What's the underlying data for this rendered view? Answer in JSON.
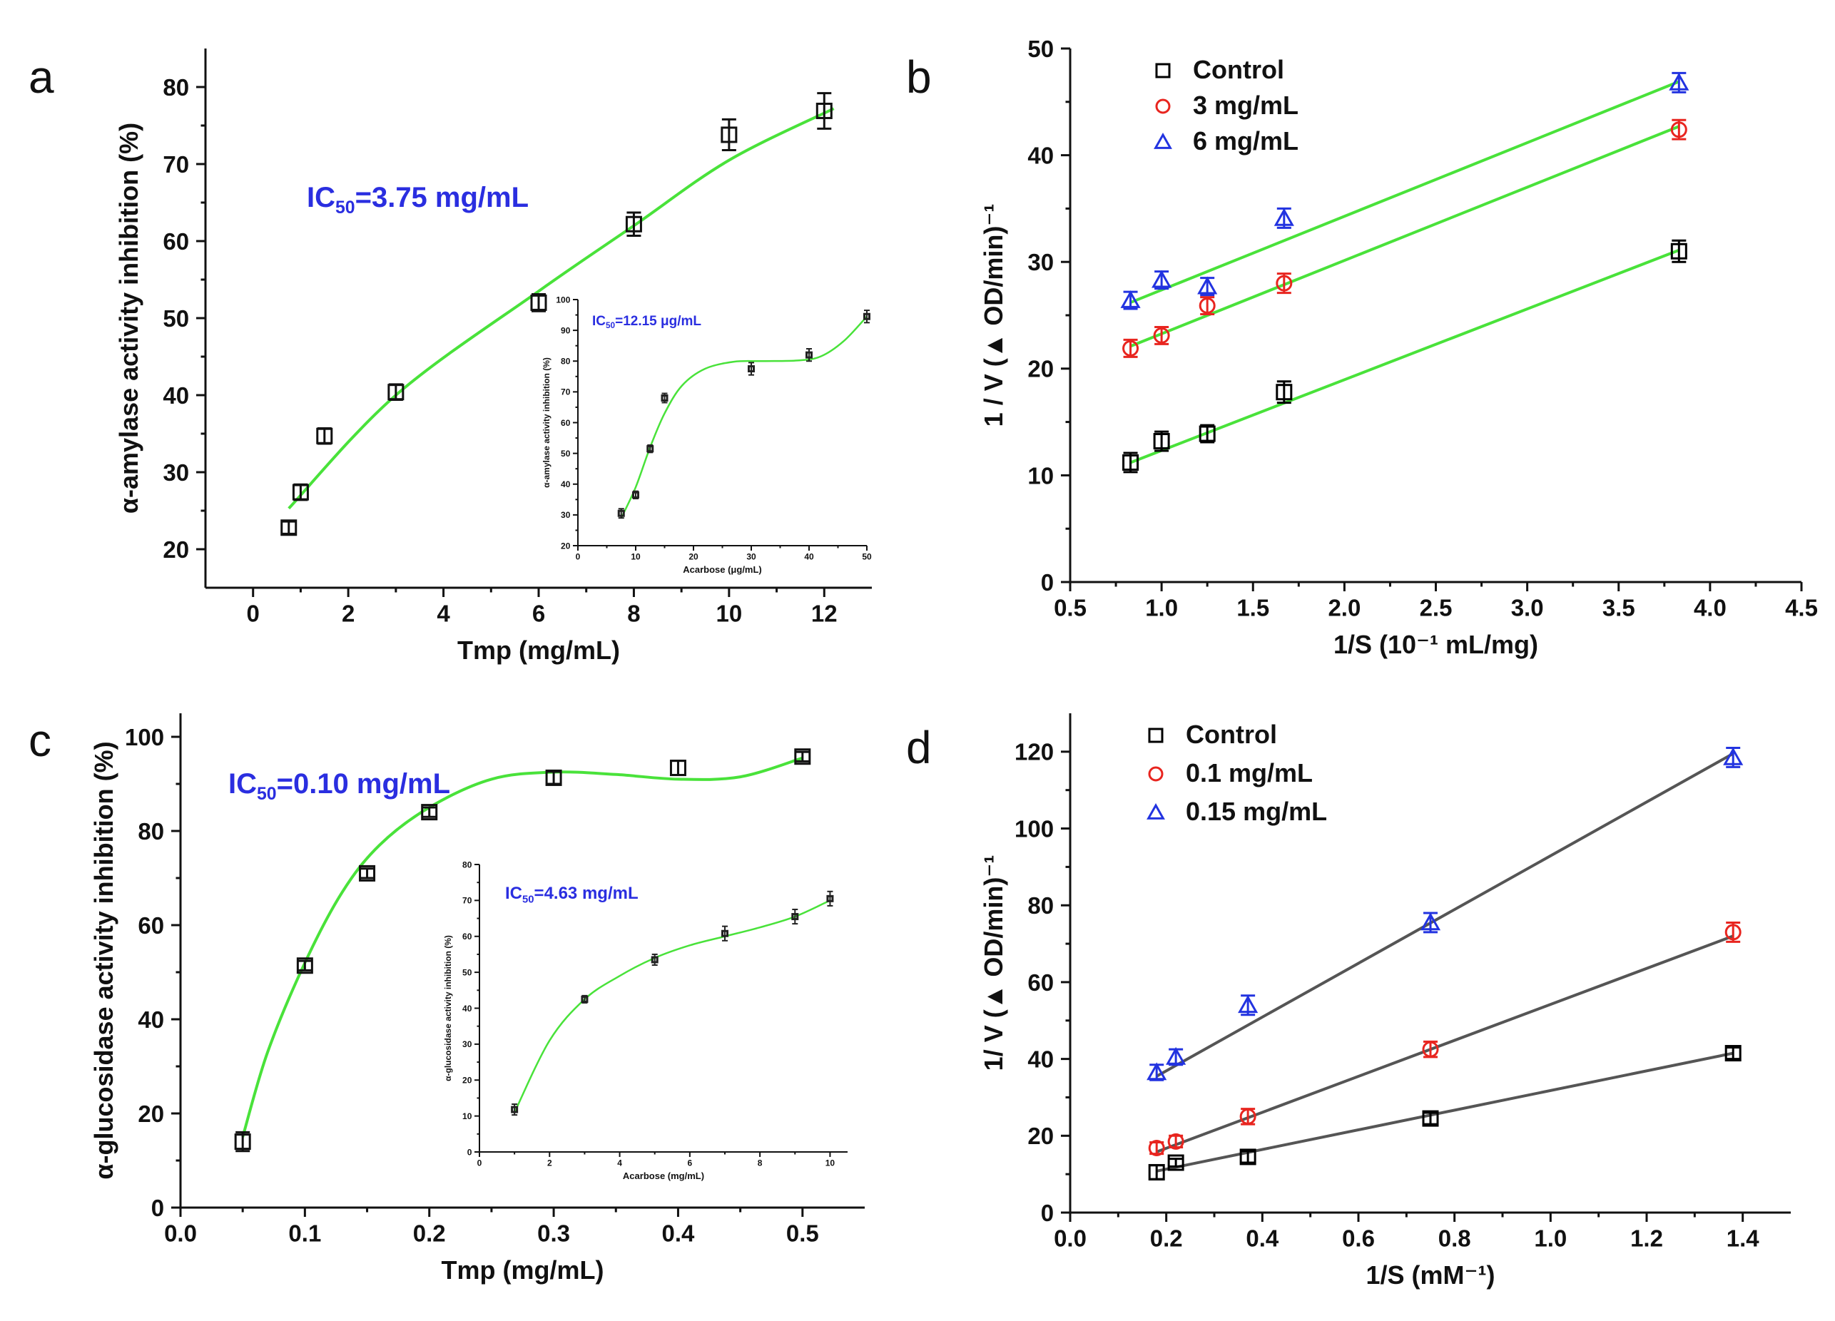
{
  "chart_data": [
    {
      "panel": "a",
      "type": "scatter",
      "xlabel": "Tmp (mg/mL)",
      "ylabel": "α-amylase activity inhibition (%)",
      "xlim": [
        -1,
        13
      ],
      "ylim": [
        15,
        85
      ],
      "xticks": [
        0,
        2,
        4,
        6,
        8,
        10,
        12
      ],
      "yticks": [
        20,
        30,
        40,
        50,
        60,
        70,
        80
      ],
      "grid": false,
      "annotation": {
        "prefix": "IC",
        "sub": "50",
        "suffix": "=3.75 mg/mL"
      },
      "series": [
        {
          "x": [
            0.75,
            1.0,
            1.5,
            3.0,
            6.0,
            8.0,
            10.0,
            12.0
          ],
          "y": [
            22.8,
            27.4,
            34.7,
            40.4,
            52.0,
            62.2,
            73.8,
            76.9
          ],
          "err": [
            0.8,
            1.0,
            1.0,
            1.0,
            1.1,
            1.5,
            2.0,
            2.3
          ],
          "fit": [
            [
              0.75,
              25.3
            ],
            [
              3,
              40.0
            ],
            [
              6,
              53.5
            ],
            [
              8,
              62.0
            ],
            [
              10,
              70.5
            ],
            [
              12.2,
              77.2
            ]
          ]
        }
      ],
      "inset": {
        "xlabel": "Acarbose (μg/mL)",
        "ylabel": "α-amylase activity inhibition (%)",
        "xlim": [
          0,
          50
        ],
        "ylim": [
          20,
          100
        ],
        "xticks": [
          0,
          10,
          20,
          30,
          40,
          50
        ],
        "yticks": [
          20,
          30,
          40,
          50,
          60,
          70,
          80,
          90,
          100
        ],
        "annotation": {
          "prefix": "IC",
          "sub": "50",
          "suffix": "=12.15 μg/mL"
        },
        "x": [
          7.5,
          10,
          12.5,
          15,
          30,
          40,
          50
        ],
        "y": [
          30.5,
          36.5,
          51.5,
          68.0,
          77.5,
          82.0,
          94.5
        ],
        "err": [
          1.5,
          1.2,
          1.2,
          1.5,
          2.0,
          2.0,
          2.0
        ],
        "fit": [
          [
            7.5,
            29
          ],
          [
            10,
            39
          ],
          [
            12.5,
            52
          ],
          [
            15,
            63
          ],
          [
            18,
            72
          ],
          [
            22,
            77.5
          ],
          [
            27,
            79.8
          ],
          [
            32,
            80
          ],
          [
            38,
            80.2
          ],
          [
            42,
            81.5
          ],
          [
            46,
            86.5
          ],
          [
            50,
            94.5
          ]
        ]
      }
    },
    {
      "panel": "b",
      "type": "scatter",
      "xlabel": "1/S (10⁻¹ mL/mg)",
      "ylabel": "1 / V (▲ OD/min)⁻¹",
      "xlim": [
        0.5,
        4.5
      ],
      "ylim": [
        0,
        50
      ],
      "xticks": [
        0.5,
        1.0,
        1.5,
        2.0,
        2.5,
        3.0,
        3.5,
        4.0,
        4.5
      ],
      "yticks": [
        0,
        10,
        20,
        30,
        40,
        50
      ],
      "grid": false,
      "legend_position": "top-left",
      "series": [
        {
          "name": "Control",
          "color": "#000000",
          "marker": "square",
          "x": [
            0.83,
            1.0,
            1.25,
            1.67,
            3.83
          ],
          "y": [
            11.2,
            13.2,
            13.9,
            17.8,
            31.0
          ],
          "err": [
            0.9,
            0.9,
            0.8,
            1.0,
            1.0
          ],
          "fit": [
            [
              0.83,
              11.2
            ],
            [
              3.83,
              31.1
            ]
          ]
        },
        {
          "name": "3 mg/mL",
          "color": "#e8251f",
          "marker": "circle",
          "x": [
            0.83,
            1.0,
            1.25,
            1.67,
            3.83
          ],
          "y": [
            21.9,
            23.1,
            25.9,
            28.0,
            42.4
          ],
          "err": [
            0.8,
            0.8,
            0.8,
            0.9,
            0.9
          ],
          "fit": [
            [
              0.83,
              22.1
            ],
            [
              3.83,
              42.7
            ]
          ]
        },
        {
          "name": "6 mg/mL",
          "color": "#2233e0",
          "marker": "triangle",
          "x": [
            0.83,
            1.0,
            1.25,
            1.67,
            3.83
          ],
          "y": [
            26.4,
            28.3,
            27.7,
            34.1,
            46.8
          ],
          "err": [
            0.8,
            0.8,
            0.8,
            0.9,
            0.9
          ],
          "fit": [
            [
              0.83,
              26.2
            ],
            [
              3.83,
              46.9
            ]
          ]
        }
      ]
    },
    {
      "panel": "c",
      "type": "scatter",
      "xlabel": "Tmp (mg/mL)",
      "ylabel": "α-glucosidase activity inhibition (%)",
      "xlim": [
        0.0,
        0.55
      ],
      "ylim": [
        0,
        105
      ],
      "xticks": [
        0.0,
        0.1,
        0.2,
        0.3,
        0.4,
        0.5
      ],
      "yticks": [
        0,
        20,
        40,
        60,
        80,
        100
      ],
      "grid": false,
      "annotation": {
        "prefix": "IC",
        "sub": "50",
        "suffix": "=0.10 mg/mL"
      },
      "series": [
        {
          "x": [
            0.05,
            0.1,
            0.15,
            0.2,
            0.3,
            0.4,
            0.5
          ],
          "y": [
            14.0,
            51.4,
            71.0,
            84.0,
            91.3,
            93.4,
            95.8
          ],
          "err": [
            2.0,
            1.0,
            1.0,
            1.0,
            1.3,
            1.5,
            1.0
          ],
          "fit": [
            [
              0.05,
              15
            ],
            [
              0.07,
              33
            ],
            [
              0.1,
              52
            ],
            [
              0.13,
              67
            ],
            [
              0.16,
              77
            ],
            [
              0.2,
              85
            ],
            [
              0.25,
              91
            ],
            [
              0.3,
              92.5
            ],
            [
              0.35,
              92
            ],
            [
              0.4,
              91
            ],
            [
              0.45,
              91.5
            ],
            [
              0.5,
              95.5
            ]
          ]
        }
      ],
      "inset": {
        "xlabel": "Acarbose (mg/mL)",
        "ylabel": "α-glucosidase activity inhibition (%)",
        "xlim": [
          0,
          10.5
        ],
        "ylim": [
          0,
          80
        ],
        "xticks": [
          0,
          2,
          4,
          6,
          8,
          10
        ],
        "yticks": [
          0,
          10,
          20,
          30,
          40,
          50,
          60,
          70,
          80
        ],
        "annotation": {
          "prefix": "IC",
          "sub": "50",
          "suffix": "=4.63 mg/mL"
        },
        "x": [
          1,
          3,
          5,
          7,
          9,
          10
        ],
        "y": [
          11.8,
          42.5,
          53.5,
          60.8,
          65.5,
          70.5
        ],
        "err": [
          1.5,
          1.0,
          1.5,
          2.0,
          2.0,
          2.0
        ],
        "fit": [
          [
            1,
            11
          ],
          [
            2,
            31
          ],
          [
            3,
            42.5
          ],
          [
            4,
            49
          ],
          [
            5,
            54
          ],
          [
            6,
            57.5
          ],
          [
            7,
            60
          ],
          [
            8,
            62.5
          ],
          [
            9,
            65.5
          ],
          [
            10,
            70
          ]
        ]
      }
    },
    {
      "panel": "d",
      "type": "scatter",
      "xlabel": "1/S (mM⁻¹)",
      "ylabel": "1/ V (▲ OD/min)⁻¹",
      "xlim": [
        0.0,
        1.5
      ],
      "ylim": [
        0,
        130
      ],
      "xticks": [
        0.0,
        0.2,
        0.4,
        0.6,
        0.8,
        1.0,
        1.2,
        1.4
      ],
      "yticks": [
        0,
        20,
        40,
        60,
        80,
        100,
        120
      ],
      "grid": false,
      "legend_position": "top-left",
      "series": [
        {
          "name": "Control",
          "color": "#000000",
          "marker": "square",
          "x": [
            0.18,
            0.22,
            0.37,
            0.75,
            1.38
          ],
          "y": [
            10.5,
            13.0,
            14.5,
            24.5,
            41.5
          ],
          "err": [
            1.8,
            1.0,
            1.5,
            1.5,
            1.5
          ],
          "fit": [
            [
              0.18,
              10.8
            ],
            [
              1.38,
              41.5
            ]
          ]
        },
        {
          "name": "0.1 mg/mL",
          "color": "#e8251f",
          "marker": "circle",
          "x": [
            0.18,
            0.22,
            0.37,
            0.75,
            1.38
          ],
          "y": [
            16.8,
            18.5,
            25.0,
            42.5,
            73.0
          ],
          "err": [
            1.5,
            1.5,
            2.0,
            2.0,
            2.5
          ],
          "fit": [
            [
              0.18,
              15.8
            ],
            [
              1.38,
              72.0
            ]
          ]
        },
        {
          "name": "0.15 mg/mL",
          "color": "#2233e0",
          "marker": "triangle",
          "x": [
            0.18,
            0.22,
            0.37,
            0.75,
            1.38
          ],
          "y": [
            36.5,
            40.5,
            54.0,
            75.5,
            118.5
          ],
          "err": [
            2.0,
            2.0,
            2.5,
            2.5,
            2.5
          ],
          "fit": [
            [
              0.18,
              35.5
            ],
            [
              1.38,
              119.5
            ]
          ]
        }
      ]
    }
  ]
}
